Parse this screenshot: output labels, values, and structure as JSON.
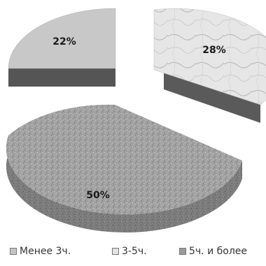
{
  "chart_data": {
    "type": "pie",
    "title": "",
    "categories": [
      "Менее 3ч.",
      "3-5ч.",
      "5ч. и более"
    ],
    "values": [
      22,
      28,
      50
    ],
    "labels": [
      "22%",
      "28%",
      "50%"
    ],
    "colors": [
      "#c4c4c4",
      "#e2e2e2",
      "#9a9a9a"
    ],
    "legend_position": "bottom",
    "exploded": true,
    "three_d": true
  }
}
